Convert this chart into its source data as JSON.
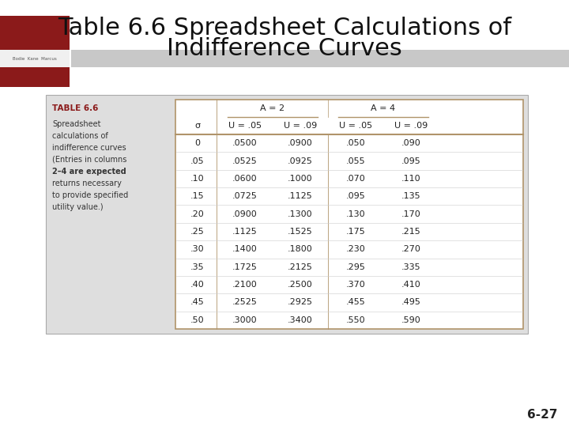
{
  "title_line1": "Table 6.6 Spreadsheet Calculations of",
  "title_line2": "Indifference Curves",
  "title_fontsize": 22,
  "title_color": "#111111",
  "table_title": "TABLE 6.6",
  "table_title_color": "#8B1A1A",
  "description_lines": [
    "Spreadsheet",
    "calculations of",
    "indifference curves",
    "(Entries in columns",
    "2–4 are expected",
    "returns necessary",
    "to provide specified",
    "utility value.)"
  ],
  "desc_bold_line": 4,
  "header_row2": [
    "σ",
    "U = .05",
    "U = .09",
    "U = .05",
    "U = .09"
  ],
  "data_rows": [
    [
      "0",
      ".0500",
      ".0900",
      ".050",
      ".090"
    ],
    [
      ".05",
      ".0525",
      ".0925",
      ".055",
      ".095"
    ],
    [
      ".10",
      ".0600",
      ".1000",
      ".070",
      ".110"
    ],
    [
      ".15",
      ".0725",
      ".1125",
      ".095",
      ".135"
    ],
    [
      ".20",
      ".0900",
      ".1300",
      ".130",
      ".170"
    ],
    [
      ".25",
      ".1125",
      ".1525",
      ".175",
      ".215"
    ],
    [
      ".30",
      ".1400",
      ".1800",
      ".230",
      ".270"
    ],
    [
      ".35",
      ".1725",
      ".2125",
      ".295",
      ".335"
    ],
    [
      ".40",
      ".2100",
      ".2500",
      ".370",
      ".410"
    ],
    [
      ".45",
      ".2525",
      ".2925",
      ".455",
      ".495"
    ],
    [
      ".50",
      ".3000",
      ".3400",
      ".550",
      ".590"
    ]
  ],
  "bg_color": "#DEDEDE",
  "inner_table_bg": "#FFFFFF",
  "page_bg": "#FFFFFF",
  "logo_red": "#8B1A1A",
  "logo_strip_color": "#CCCCCC",
  "page_num": "6-27",
  "footer_strip_color": "#C8C8C8",
  "table_border_color": "#B0946A",
  "inner_line_color": "#CCCCCC",
  "header_line_color": "#B0946A"
}
